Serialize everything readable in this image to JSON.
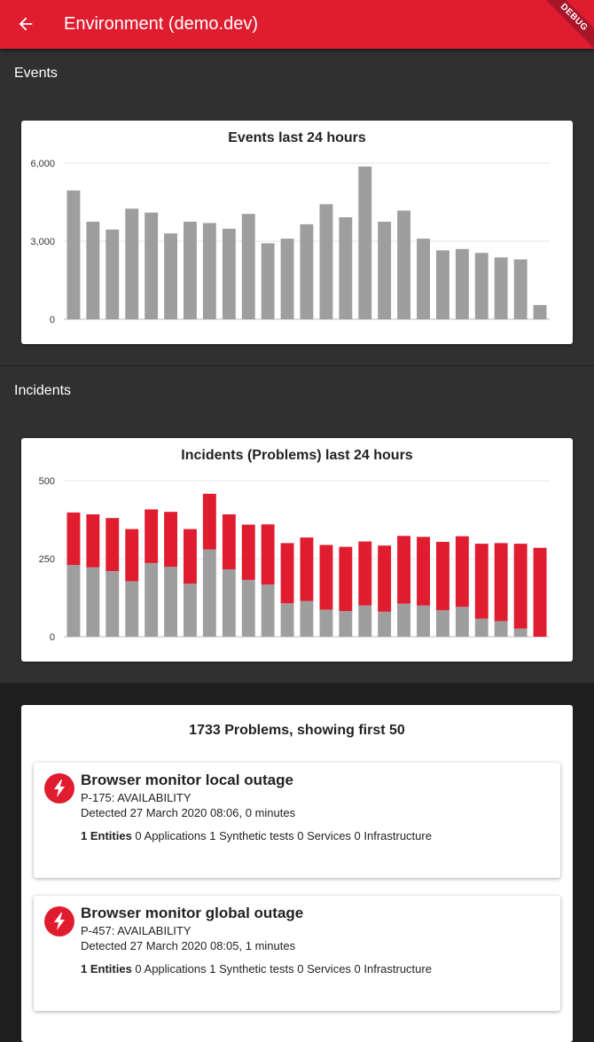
{
  "appbar": {
    "title": "Environment (demo.dev)",
    "back_icon": "arrow-left-icon",
    "debug_label": "DEBUG",
    "color": "#e01c2f"
  },
  "events": {
    "section_label": "Events"
  },
  "incidents": {
    "section_label": "Incidents"
  },
  "chart_data": [
    {
      "type": "bar",
      "title": "Events last 24 hours",
      "xlabel": "",
      "ylabel": "",
      "ylim": [
        0,
        6000
      ],
      "yticks": [
        "0",
        "3,000",
        "6,000"
      ],
      "grid": true,
      "series": [
        {
          "color": "#9e9e9e",
          "values": [
            4950,
            3750,
            3450,
            4250,
            4100,
            3300,
            3750,
            3700,
            3480,
            4050,
            2920,
            3100,
            3650,
            4420,
            3920,
            5870,
            3750,
            4180,
            3100,
            2650,
            2700,
            2550,
            2380,
            2300,
            550
          ]
        }
      ]
    },
    {
      "type": "bar",
      "stacked": true,
      "title": "Incidents (Problems) last 24 hours",
      "xlabel": "",
      "ylabel": "",
      "ylim": [
        0,
        500
      ],
      "yticks": [
        "0",
        "250",
        "500"
      ],
      "grid": true,
      "series": [
        {
          "color": "#9e9e9e",
          "values": [
            230,
            222,
            210,
            178,
            236,
            224,
            170,
            280,
            216,
            182,
            167,
            107,
            115,
            87,
            82,
            100,
            80,
            106,
            100,
            85,
            96,
            58,
            50,
            26,
            0
          ]
        },
        {
          "color": "#e01c2f",
          "values": [
            168,
            170,
            170,
            167,
            172,
            176,
            175,
            178,
            176,
            177,
            193,
            193,
            203,
            207,
            206,
            205,
            212,
            217,
            220,
            219,
            226,
            240,
            250,
            272,
            285
          ]
        }
      ]
    }
  ],
  "problems": {
    "header": "1733 Problems, showing first 50",
    "items": [
      {
        "icon": "lightning-bolt-icon",
        "title": "Browser monitor local outage",
        "id": "P-175: AVAILABILITY",
        "detected": "Detected 27 March 2020 08:06, 0 minutes",
        "entities_bold": "1 Entities",
        "entities_rest": " 0 Applications 1 Synthetic tests 0 Services 0 Infrastructure"
      },
      {
        "icon": "lightning-bolt-icon",
        "title": "Browser monitor global outage",
        "id": "P-457: AVAILABILITY",
        "detected": "Detected 27 March 2020 08:05, 1 minutes",
        "entities_bold": "1 Entities",
        "entities_rest": " 0 Applications 1 Synthetic tests 0 Services 0 Infrastructure"
      }
    ]
  }
}
